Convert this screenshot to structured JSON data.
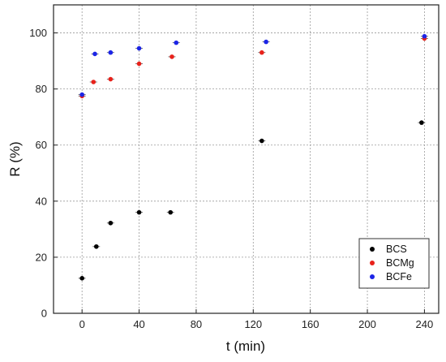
{
  "chart_data": {
    "type": "scatter",
    "xlabel": "t (min)",
    "ylabel": "R (%)",
    "xlim": [
      -20,
      250
    ],
    "ylim": [
      0,
      110
    ],
    "xticks": [
      0,
      40,
      80,
      120,
      160,
      200,
      240
    ],
    "yticks": [
      0,
      20,
      40,
      60,
      80,
      100
    ],
    "grid": true,
    "legend_position": "bottom-right",
    "series": [
      {
        "name": "BCS",
        "color": "#000000",
        "x": [
          0,
          10,
          20,
          40,
          62,
          126,
          238
        ],
        "y": [
          12.5,
          23.8,
          32.2,
          36.0,
          36.0,
          61.5,
          68.0
        ]
      },
      {
        "name": "BCMg",
        "color": "#e8221b",
        "x": [
          0,
          8,
          20,
          40,
          63,
          126,
          240
        ],
        "y": [
          77.5,
          82.5,
          83.5,
          89.0,
          91.5,
          93.0,
          98.0
        ]
      },
      {
        "name": "BCFe",
        "color": "#1c25e6",
        "x": [
          0,
          9,
          20,
          40,
          66,
          129,
          240
        ],
        "y": [
          78.0,
          92.5,
          93.0,
          94.5,
          96.5,
          96.8,
          98.8
        ]
      }
    ]
  }
}
